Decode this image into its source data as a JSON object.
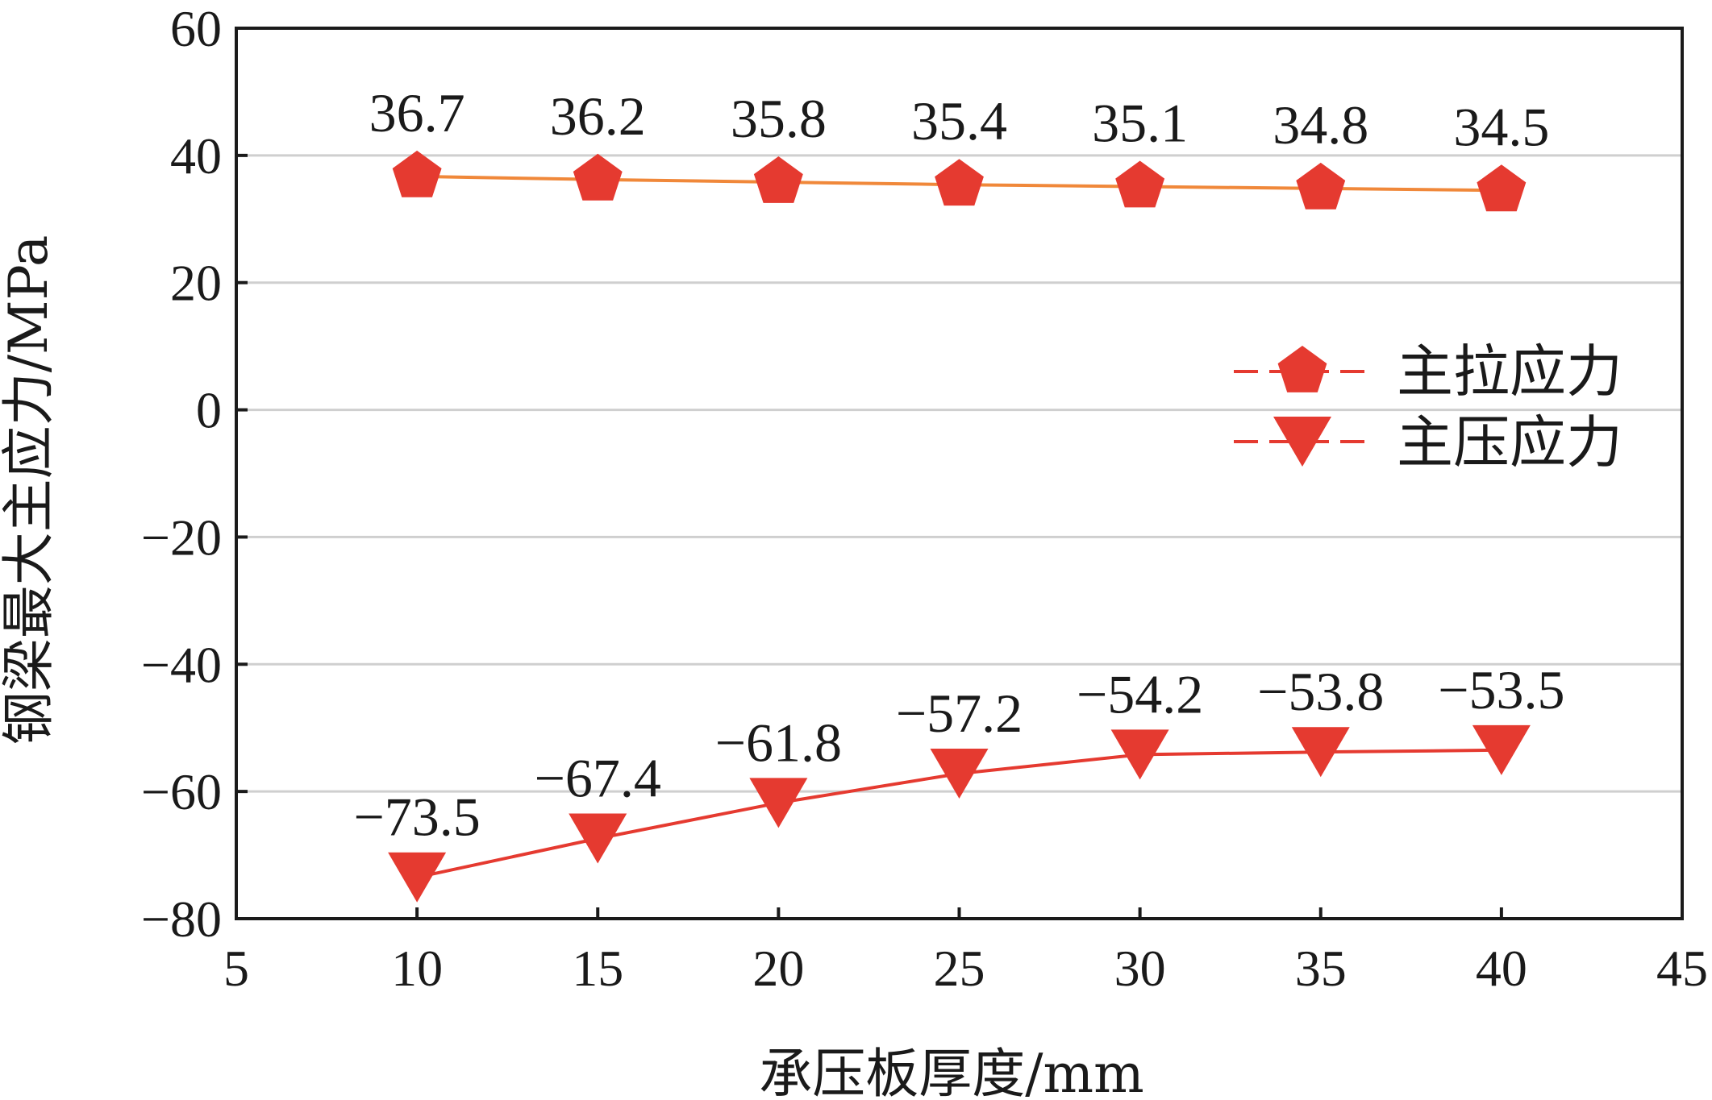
{
  "chart_data": {
    "type": "line",
    "xlabel": "承压板厚度/mm",
    "ylabel": "钢梁最大主应力/MPa",
    "xlim": [
      5,
      45
    ],
    "ylim": [
      -80,
      60
    ],
    "xticks": [
      5,
      10,
      15,
      20,
      25,
      30,
      35,
      40,
      45
    ],
    "yticks": [
      60,
      40,
      20,
      0,
      -20,
      -40,
      -60,
      -80
    ],
    "ytick_labels": [
      "60",
      "40",
      "20",
      "0",
      "−20",
      "−40",
      "−60",
      "−80"
    ],
    "grid": "horizontal",
    "legend_position": "right",
    "x": [
      10,
      15,
      20,
      25,
      30,
      35,
      40
    ],
    "series": [
      {
        "name": "主拉应力",
        "values": [
          36.7,
          36.2,
          35.8,
          35.4,
          35.1,
          34.8,
          34.5
        ],
        "labels": [
          "36.7",
          "36.2",
          "35.8",
          "35.4",
          "35.1",
          "34.8",
          "34.5"
        ],
        "marker": "pentagon",
        "line_color": "#f0883a",
        "marker_color": "#e53a30"
      },
      {
        "name": "主压应力",
        "values": [
          -73.5,
          -67.4,
          -61.8,
          -57.2,
          -54.2,
          -53.8,
          -53.5
        ],
        "labels": [
          "−73.5",
          "−67.4",
          "−61.8",
          "−57.2",
          "−54.2",
          "−53.8",
          "−53.5"
        ],
        "marker": "triangle-down",
        "line_color": "#e53a30",
        "marker_color": "#e53a30"
      }
    ],
    "colors": {
      "grid": "#cfcfcf",
      "axis": "#1a1a1a"
    }
  }
}
